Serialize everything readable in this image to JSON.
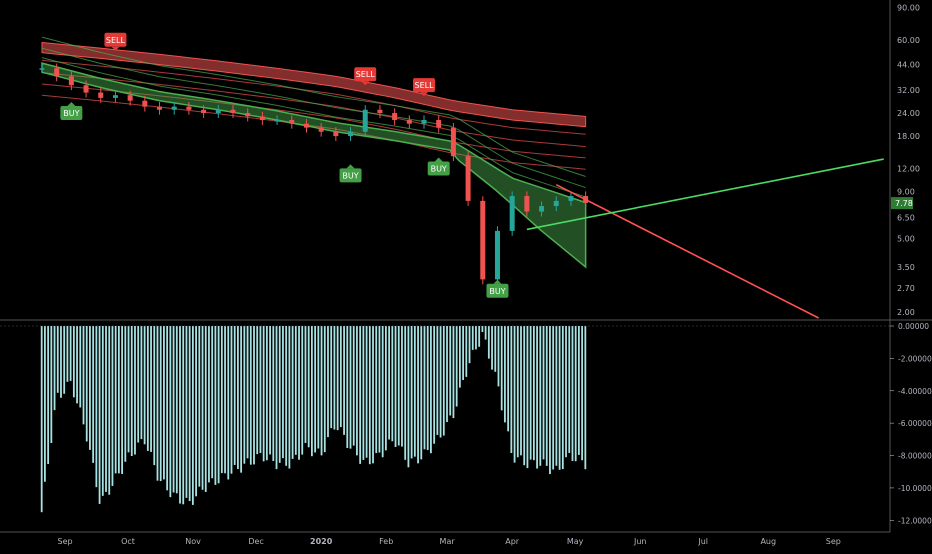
{
  "colors": {
    "background": "#000000",
    "axis_line": "#555555",
    "axis_text": "#b2b5be",
    "band_red": "#ef5350",
    "band_green": "#4caf50",
    "candle_up": "#26a69a",
    "candle_down": "#ef5350",
    "trend_red": "#ff5252",
    "trend_green": "#4cd964",
    "histogram": "#a7e3e3",
    "price_tag_bg": "#2e7d32",
    "buy_bg": "#43a047",
    "sell_bg": "#e53935"
  },
  "chart_data": [
    {
      "type": "line",
      "panel": "price",
      "scale": "log",
      "x_ticks": [
        "Sep",
        "Oct",
        "Nov",
        "Dec",
        "2020",
        "Feb",
        "Mar",
        "Apr",
        "May",
        "Jun",
        "Jul",
        "Aug",
        "Sep"
      ],
      "y_ticks": [
        "90.00",
        "60.00",
        "44.00",
        "32.00",
        "24.00",
        "18.00",
        "12.00",
        "9.00",
        "6.50",
        "5.00",
        "3.50",
        "2.70",
        "2.00"
      ],
      "ylim": [
        1.85,
        95
      ],
      "last_price": "7.78",
      "series": [
        {
          "role": "close",
          "x": [
            "2019-08-21",
            "2019-08-28",
            "2019-09-04",
            "2019-09-11",
            "2019-09-18",
            "2019-09-25",
            "2019-10-02",
            "2019-10-09",
            "2019-10-16",
            "2019-10-23",
            "2019-10-30",
            "2019-11-06",
            "2019-11-13",
            "2019-11-20",
            "2019-11-27",
            "2019-12-04",
            "2019-12-11",
            "2019-12-18",
            "2019-12-25",
            "2020-01-01",
            "2020-01-08",
            "2020-01-15",
            "2020-01-22",
            "2020-01-29",
            "2020-02-05",
            "2020-02-12",
            "2020-02-19",
            "2020-02-26",
            "2020-03-04",
            "2020-03-11",
            "2020-03-18",
            "2020-03-25",
            "2020-04-01",
            "2020-04-08",
            "2020-04-15",
            "2020-04-22",
            "2020-04-29",
            "2020-05-06"
          ],
          "values": [
            42,
            38,
            34,
            31,
            29,
            30,
            28,
            26,
            25,
            26,
            25,
            24,
            25,
            24,
            23,
            22,
            22,
            21,
            20,
            19,
            18,
            19,
            25,
            24,
            22,
            21,
            22,
            20,
            14,
            8,
            3.0,
            5.5,
            8.5,
            7.0,
            7.5,
            8.0,
            8.5,
            7.8
          ]
        },
        {
          "role": "upper_band",
          "x": [
            "2019-08-21",
            "2019-09-18",
            "2019-10-16",
            "2019-11-13",
            "2019-12-11",
            "2020-01-08",
            "2020-02-05",
            "2020-03-04",
            "2020-04-01",
            "2020-05-06"
          ],
          "values": [
            58,
            54,
            50,
            46,
            42,
            38,
            33,
            28,
            25,
            23
          ]
        },
        {
          "role": "lower_band",
          "x": [
            "2019-08-21",
            "2019-09-18",
            "2019-10-16",
            "2019-11-13",
            "2019-12-11",
            "2020-01-08",
            "2020-02-05",
            "2020-03-04",
            "2020-04-01",
            "2020-05-06"
          ],
          "values": [
            40,
            33,
            28,
            25,
            22,
            19,
            17,
            15,
            9.5,
            7.0
          ]
        },
        {
          "role": "floor_band",
          "x": [
            "2020-03-04",
            "2020-03-25",
            "2020-04-15",
            "2020-05-06"
          ],
          "values": [
            14,
            9.0,
            5.5,
            3.5
          ]
        }
      ],
      "signals": [
        {
          "label": "SELL",
          "x": "2019-09-25",
          "y": 60
        },
        {
          "label": "BUY",
          "x": "2019-09-04",
          "y": 24
        },
        {
          "label": "SELL",
          "x": "2020-01-22",
          "y": 39
        },
        {
          "label": "BUY",
          "x": "2020-01-15",
          "y": 11
        },
        {
          "label": "SELL",
          "x": "2020-02-19",
          "y": 34
        },
        {
          "label": "BUY",
          "x": "2020-02-26",
          "y": 12
        },
        {
          "label": "BUY",
          "x": "2020-03-25",
          "y": 2.6
        }
      ],
      "trend_lines": [
        {
          "color": "trend_red",
          "from": {
            "x": "2020-04-22",
            "y": 9.8
          },
          "to": {
            "x": "2020-08-25",
            "y": 1.85
          }
        },
        {
          "color": "trend_green",
          "from": {
            "x": "2020-04-08",
            "y": 5.6
          },
          "to": {
            "x": "2020-09-25",
            "y": 13.5
          }
        }
      ]
    },
    {
      "type": "bar",
      "panel": "oscillator",
      "y_ticks": [
        "0.00000",
        "-2.00000",
        "-4.00000",
        "-6.00000",
        "-8.00000",
        "-10.00000",
        "-12.00000"
      ],
      "ylim": [
        -12.6,
        0
      ],
      "x": [
        "2019-08-21",
        "2019-08-28",
        "2019-09-04",
        "2019-09-11",
        "2019-09-18",
        "2019-09-25",
        "2019-10-02",
        "2019-10-09",
        "2019-10-16",
        "2019-10-23",
        "2019-10-30",
        "2019-11-06",
        "2019-11-13",
        "2019-11-20",
        "2019-11-27",
        "2019-12-04",
        "2019-12-11",
        "2019-12-18",
        "2019-12-25",
        "2020-01-01",
        "2020-01-08",
        "2020-01-15",
        "2020-01-22",
        "2020-01-29",
        "2020-02-05",
        "2020-02-12",
        "2020-02-19",
        "2020-02-26",
        "2020-03-04",
        "2020-03-11",
        "2020-03-18",
        "2020-03-25",
        "2020-04-01",
        "2020-04-08",
        "2020-04-15",
        "2020-04-22",
        "2020-04-29",
        "2020-05-06"
      ],
      "values": [
        -11.5,
        -4.5,
        -3.5,
        -6.5,
        -11.0,
        -9.5,
        -8.0,
        -7.0,
        -9.5,
        -10.5,
        -11.0,
        -10.0,
        -9.5,
        -9.0,
        -8.5,
        -8.0,
        -8.5,
        -8.5,
        -7.5,
        -8.0,
        -6.0,
        -7.5,
        -8.5,
        -8.0,
        -7.0,
        -8.5,
        -8.0,
        -7.0,
        -5.5,
        -2.5,
        -0.5,
        -3.5,
        -8.0,
        -8.5,
        -8.5,
        -9.0,
        -8.0,
        -8.5
      ]
    }
  ]
}
